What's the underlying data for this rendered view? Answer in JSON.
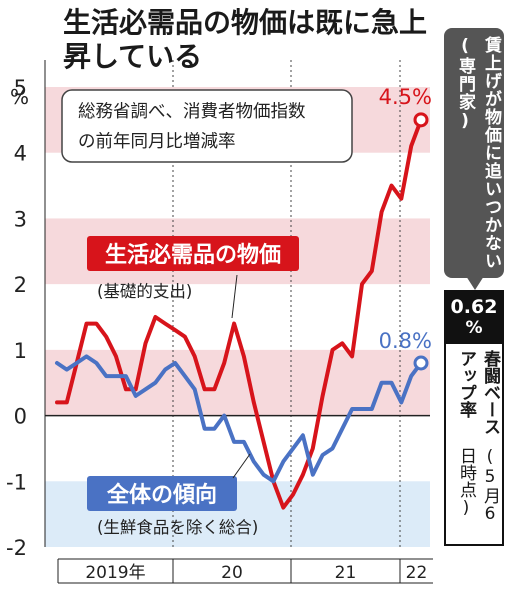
{
  "title": "生活必需品の物価は既に急上昇している",
  "side_callout": "賃上げが物価に追いつかない(専門家)",
  "wage": {
    "value": "0.62",
    "unit": "%",
    "label": "春闘ベースアップ率",
    "note": "(5月6日時点)"
  },
  "colors": {
    "red": "#d7141b",
    "blue": "#4a72c4",
    "red_band": "#f6d9dc",
    "blue_band": "#dcebf8"
  },
  "chart_data": {
    "type": "line",
    "unit_label": "%",
    "note": "総務省調べ、消費者物価指数の前年同月比増減率",
    "yticks": [
      "5",
      "4",
      "3",
      "2",
      "1",
      "0",
      "-1",
      "-2"
    ],
    "ylim": [
      -2,
      5
    ],
    "year_labels": [
      "2019年",
      "20",
      "21",
      "22"
    ],
    "grid": "dotted vertical lines at year boundaries",
    "shaded_bands": [
      {
        "from": 4.0,
        "to": 5.0,
        "color": "red"
      },
      {
        "from": 2.0,
        "to": 3.0,
        "color": "red"
      },
      {
        "from": 0.0,
        "to": 1.0,
        "color": "red"
      },
      {
        "from": -2.0,
        "to": -1.0,
        "color": "blue"
      }
    ],
    "series": [
      {
        "name": "生活必需品の物価",
        "sub": "(基礎的支出)",
        "color": "red",
        "end_label": "4.5%",
        "values": [
          0.2,
          0.2,
          0.8,
          1.4,
          1.4,
          1.2,
          0.9,
          0.4,
          0.4,
          1.1,
          1.5,
          1.4,
          1.3,
          1.2,
          0.9,
          0.4,
          0.4,
          0.8,
          1.4,
          0.9,
          0.2,
          -0.4,
          -1.0,
          -1.4,
          -1.2,
          -0.9,
          -0.5,
          0.3,
          1.0,
          1.1,
          0.9,
          2.0,
          2.2,
          3.1,
          3.5,
          3.3,
          4.1,
          4.5
        ]
      },
      {
        "name": "全体の傾向",
        "sub": "(生鮮食品を除く総合)",
        "color": "blue",
        "end_label": "0.8%",
        "values": [
          0.8,
          0.7,
          0.8,
          0.9,
          0.8,
          0.6,
          0.6,
          0.6,
          0.3,
          0.4,
          0.5,
          0.7,
          0.8,
          0.6,
          0.4,
          -0.2,
          -0.2,
          0.0,
          -0.4,
          -0.4,
          -0.7,
          -0.9,
          -1.0,
          -0.7,
          -0.5,
          -0.3,
          -0.9,
          -0.6,
          -0.5,
          -0.2,
          0.1,
          0.1,
          0.1,
          0.5,
          0.5,
          0.2,
          0.6,
          0.8
        ]
      }
    ]
  }
}
